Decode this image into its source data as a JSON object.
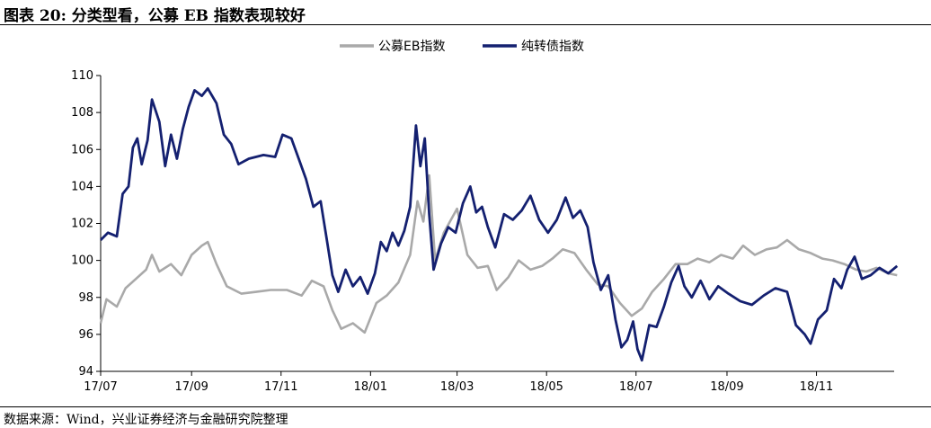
{
  "figure": {
    "title": "图表 20:  分类型看，公募 EB 指数表现较好",
    "source": "数据来源：Wind，兴业证券经济与金融研究院整理"
  },
  "chart_data": {
    "type": "line",
    "title": "",
    "xlabel": "",
    "ylabel": "",
    "ylim": [
      94,
      110
    ],
    "yticks": [
      94,
      96,
      98,
      100,
      102,
      104,
      106,
      108,
      110
    ],
    "xticks": [
      "17/07",
      "17/09",
      "17/11",
      "18/01",
      "18/03",
      "18/05",
      "18/07",
      "18/09",
      "18/11"
    ],
    "grid": false,
    "legend": "top-center",
    "series": [
      {
        "name": "公募EB指数",
        "color": "#a9a9a9",
        "points": [
          [
            "2017-07-01",
            96.6
          ],
          [
            "2017-07-05",
            97.9
          ],
          [
            "2017-07-12",
            97.5
          ],
          [
            "2017-07-18",
            98.5
          ],
          [
            "2017-07-25",
            99.0
          ],
          [
            "2017-08-01",
            99.5
          ],
          [
            "2017-08-05",
            100.3
          ],
          [
            "2017-08-10",
            99.4
          ],
          [
            "2017-08-18",
            99.8
          ],
          [
            "2017-08-25",
            99.2
          ],
          [
            "2017-09-01",
            100.3
          ],
          [
            "2017-09-08",
            100.8
          ],
          [
            "2017-09-12",
            101.0
          ],
          [
            "2017-09-18",
            99.8
          ],
          [
            "2017-09-25",
            98.6
          ],
          [
            "2017-10-05",
            98.2
          ],
          [
            "2017-10-15",
            98.3
          ],
          [
            "2017-10-25",
            98.4
          ],
          [
            "2017-11-05",
            98.4
          ],
          [
            "2017-11-15",
            98.1
          ],
          [
            "2017-11-22",
            98.9
          ],
          [
            "2017-11-30",
            98.6
          ],
          [
            "2017-12-06",
            97.3
          ],
          [
            "2017-12-12",
            96.3
          ],
          [
            "2017-12-20",
            96.6
          ],
          [
            "2017-12-28",
            96.1
          ],
          [
            "2018-01-05",
            97.7
          ],
          [
            "2018-01-12",
            98.1
          ],
          [
            "2018-01-20",
            98.8
          ],
          [
            "2018-01-28",
            100.3
          ],
          [
            "2018-02-02",
            103.2
          ],
          [
            "2018-02-06",
            102.1
          ],
          [
            "2018-02-10",
            104.6
          ],
          [
            "2018-02-14",
            100.0
          ],
          [
            "2018-02-20",
            101.5
          ],
          [
            "2018-03-01",
            102.8
          ],
          [
            "2018-03-08",
            100.3
          ],
          [
            "2018-03-15",
            99.6
          ],
          [
            "2018-03-22",
            99.7
          ],
          [
            "2018-03-28",
            98.4
          ],
          [
            "2018-04-05",
            99.1
          ],
          [
            "2018-04-12",
            100.0
          ],
          [
            "2018-04-20",
            99.5
          ],
          [
            "2018-04-28",
            99.7
          ],
          [
            "2018-05-05",
            100.1
          ],
          [
            "2018-05-12",
            100.6
          ],
          [
            "2018-05-20",
            100.4
          ],
          [
            "2018-05-28",
            99.5
          ],
          [
            "2018-06-05",
            98.7
          ],
          [
            "2018-06-12",
            98.6
          ],
          [
            "2018-06-20",
            97.7
          ],
          [
            "2018-06-28",
            97.0
          ],
          [
            "2018-07-05",
            97.4
          ],
          [
            "2018-07-12",
            98.3
          ],
          [
            "2018-07-20",
            99.0
          ],
          [
            "2018-07-28",
            99.8
          ],
          [
            "2018-08-05",
            99.8
          ],
          [
            "2018-08-12",
            100.1
          ],
          [
            "2018-08-20",
            99.9
          ],
          [
            "2018-08-28",
            100.3
          ],
          [
            "2018-09-05",
            100.1
          ],
          [
            "2018-09-12",
            100.8
          ],
          [
            "2018-09-20",
            100.3
          ],
          [
            "2018-09-28",
            100.6
          ],
          [
            "2018-10-05",
            100.7
          ],
          [
            "2018-10-12",
            101.1
          ],
          [
            "2018-10-20",
            100.6
          ],
          [
            "2018-10-28",
            100.4
          ],
          [
            "2018-11-05",
            100.1
          ],
          [
            "2018-11-12",
            100.0
          ],
          [
            "2018-11-20",
            99.8
          ],
          [
            "2018-11-28",
            99.5
          ],
          [
            "2018-12-05",
            99.4
          ],
          [
            "2018-12-12",
            99.6
          ],
          [
            "2018-12-20",
            99.3
          ],
          [
            "2018-12-26",
            99.2
          ]
        ]
      },
      {
        "name": "纯转债指数",
        "color": "#142070",
        "points": [
          [
            "2017-07-01",
            101.1
          ],
          [
            "2017-07-06",
            101.5
          ],
          [
            "2017-07-12",
            101.3
          ],
          [
            "2017-07-16",
            103.6
          ],
          [
            "2017-07-20",
            104.0
          ],
          [
            "2017-07-23",
            106.1
          ],
          [
            "2017-07-26",
            106.6
          ],
          [
            "2017-07-29",
            105.2
          ],
          [
            "2017-08-02",
            106.5
          ],
          [
            "2017-08-05",
            108.7
          ],
          [
            "2017-08-10",
            107.5
          ],
          [
            "2017-08-14",
            105.1
          ],
          [
            "2017-08-18",
            106.8
          ],
          [
            "2017-08-22",
            105.5
          ],
          [
            "2017-08-26",
            107.1
          ],
          [
            "2017-08-30",
            108.3
          ],
          [
            "2017-09-03",
            109.2
          ],
          [
            "2017-09-08",
            108.9
          ],
          [
            "2017-09-12",
            109.3
          ],
          [
            "2017-09-18",
            108.5
          ],
          [
            "2017-09-23",
            106.8
          ],
          [
            "2017-09-28",
            106.3
          ],
          [
            "2017-10-03",
            105.2
          ],
          [
            "2017-10-10",
            105.5
          ],
          [
            "2017-10-20",
            105.7
          ],
          [
            "2017-10-28",
            105.6
          ],
          [
            "2017-11-02",
            106.8
          ],
          [
            "2017-11-08",
            106.6
          ],
          [
            "2017-11-13",
            105.5
          ],
          [
            "2017-11-18",
            104.4
          ],
          [
            "2017-11-23",
            102.9
          ],
          [
            "2017-11-28",
            103.2
          ],
          [
            "2017-12-02",
            101.2
          ],
          [
            "2017-12-06",
            99.2
          ],
          [
            "2017-12-10",
            98.3
          ],
          [
            "2017-12-15",
            99.5
          ],
          [
            "2017-12-20",
            98.6
          ],
          [
            "2017-12-25",
            99.1
          ],
          [
            "2017-12-30",
            98.2
          ],
          [
            "2018-01-04",
            99.3
          ],
          [
            "2018-01-08",
            101.0
          ],
          [
            "2018-01-12",
            100.5
          ],
          [
            "2018-01-16",
            101.5
          ],
          [
            "2018-01-20",
            100.8
          ],
          [
            "2018-01-24",
            101.6
          ],
          [
            "2018-01-28",
            102.9
          ],
          [
            "2018-02-01",
            107.3
          ],
          [
            "2018-02-04",
            105.1
          ],
          [
            "2018-02-07",
            106.6
          ],
          [
            "2018-02-10",
            102.5
          ],
          [
            "2018-02-13",
            99.5
          ],
          [
            "2018-02-18",
            100.9
          ],
          [
            "2018-02-23",
            101.8
          ],
          [
            "2018-02-28",
            101.5
          ],
          [
            "2018-03-05",
            103.1
          ],
          [
            "2018-03-10",
            104.0
          ],
          [
            "2018-03-14",
            102.6
          ],
          [
            "2018-03-18",
            102.9
          ],
          [
            "2018-03-22",
            101.8
          ],
          [
            "2018-03-27",
            100.7
          ],
          [
            "2018-04-02",
            102.5
          ],
          [
            "2018-04-08",
            102.2
          ],
          [
            "2018-04-14",
            102.7
          ],
          [
            "2018-04-20",
            103.5
          ],
          [
            "2018-04-26",
            102.2
          ],
          [
            "2018-05-02",
            101.5
          ],
          [
            "2018-05-08",
            102.2
          ],
          [
            "2018-05-14",
            103.4
          ],
          [
            "2018-05-19",
            102.3
          ],
          [
            "2018-05-24",
            102.7
          ],
          [
            "2018-05-29",
            101.8
          ],
          [
            "2018-06-02",
            99.9
          ],
          [
            "2018-06-07",
            98.4
          ],
          [
            "2018-06-12",
            99.2
          ],
          [
            "2018-06-17",
            96.8
          ],
          [
            "2018-06-21",
            95.3
          ],
          [
            "2018-06-25",
            95.7
          ],
          [
            "2018-06-29",
            96.7
          ],
          [
            "2018-07-02",
            95.2
          ],
          [
            "2018-07-05",
            94.6
          ],
          [
            "2018-07-10",
            96.5
          ],
          [
            "2018-07-15",
            96.4
          ],
          [
            "2018-07-20",
            97.5
          ],
          [
            "2018-07-25",
            98.8
          ],
          [
            "2018-07-30",
            99.7
          ],
          [
            "2018-08-03",
            98.6
          ],
          [
            "2018-08-08",
            98.0
          ],
          [
            "2018-08-14",
            98.9
          ],
          [
            "2018-08-20",
            97.9
          ],
          [
            "2018-08-26",
            98.6
          ],
          [
            "2018-09-02",
            98.2
          ],
          [
            "2018-09-10",
            97.8
          ],
          [
            "2018-09-18",
            97.6
          ],
          [
            "2018-09-26",
            98.1
          ],
          [
            "2018-10-04",
            98.5
          ],
          [
            "2018-10-12",
            98.3
          ],
          [
            "2018-10-18",
            96.5
          ],
          [
            "2018-10-24",
            96.0
          ],
          [
            "2018-10-28",
            95.5
          ],
          [
            "2018-11-02",
            96.8
          ],
          [
            "2018-11-08",
            97.3
          ],
          [
            "2018-11-13",
            99.0
          ],
          [
            "2018-11-18",
            98.5
          ],
          [
            "2018-11-22",
            99.5
          ],
          [
            "2018-11-27",
            100.2
          ],
          [
            "2018-12-02",
            99.0
          ],
          [
            "2018-12-08",
            99.2
          ],
          [
            "2018-12-14",
            99.6
          ],
          [
            "2018-12-20",
            99.3
          ],
          [
            "2018-12-26",
            99.7
          ]
        ]
      }
    ]
  }
}
